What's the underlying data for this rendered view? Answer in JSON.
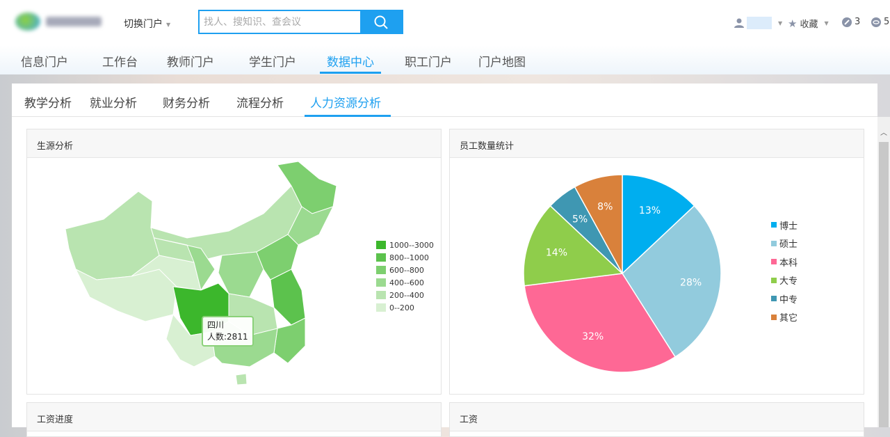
{
  "header": {
    "switch_label": "切换门户",
    "search_placeholder": "找人、搜知识、查会议",
    "favorites_label": "收藏",
    "notification_count": "3",
    "message_count": "5"
  },
  "nav": {
    "items": [
      {
        "label": "信息门户"
      },
      {
        "label": "工作台"
      },
      {
        "label": "教师门户"
      },
      {
        "label": "学生门户"
      },
      {
        "label": "数据中心",
        "active": true
      },
      {
        "label": "职工门户"
      },
      {
        "label": "门户地图"
      }
    ]
  },
  "subtabs": {
    "items": [
      {
        "label": "教学分析"
      },
      {
        "label": "就业分析"
      },
      {
        "label": "财务分析"
      },
      {
        "label": "流程分析"
      },
      {
        "label": "人力资源分析",
        "active": true
      }
    ]
  },
  "cards": {
    "map_title": "生源分析",
    "pie_title": "员工数量统计",
    "salary_progress_title": "工资进度",
    "salary_title": "工资"
  },
  "map": {
    "legend": [
      {
        "label": "1000--3000",
        "color": "#3cb72c"
      },
      {
        "label": "800--1000",
        "color": "#5cc24d"
      },
      {
        "label": "600--800",
        "color": "#7dcf6f"
      },
      {
        "label": "400--600",
        "color": "#9bda90"
      },
      {
        "label": "200--400",
        "color": "#b9e4b0"
      },
      {
        "label": "0--200",
        "color": "#d8f0d2"
      }
    ],
    "tooltip": {
      "region": "四川",
      "value": "人数:2811"
    }
  },
  "chart_data": {
    "type": "pie",
    "title": "员工数量统计",
    "categories": [
      "博士",
      "硕士",
      "本科",
      "大专",
      "中专",
      "其它"
    ],
    "values": [
      13,
      28,
      32,
      14,
      5,
      8
    ],
    "labels": [
      "13%",
      "28%",
      "32%",
      "14%",
      "5%",
      "8%"
    ],
    "colors": [
      "#00aeef",
      "#92cbdd",
      "#fe6895",
      "#8fcd4b",
      "#3f97b2",
      "#d9813b"
    ],
    "legend_placement": "right"
  }
}
